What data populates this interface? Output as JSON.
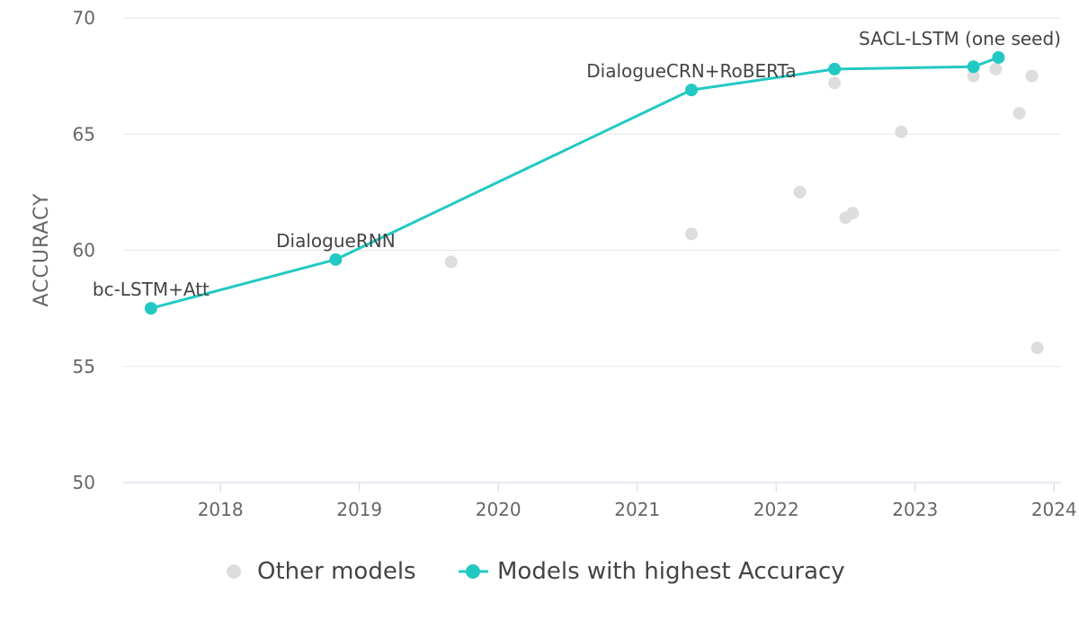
{
  "chart_data": {
    "type": "scatter",
    "title": "",
    "xlabel": "",
    "ylabel": "ACCURACY",
    "xlim": [
      2017.3,
      2024.05
    ],
    "ylim": [
      50,
      70
    ],
    "x_ticks": [
      2018,
      2019,
      2020,
      2021,
      2022,
      2023,
      2024
    ],
    "y_ticks": [
      50,
      55,
      60,
      65,
      70
    ],
    "grid": "horizontal",
    "legend_position": "bottom-center",
    "colors": {
      "best": "#22c9c2",
      "other": "#dddddd"
    },
    "series": [
      {
        "name": "Other models",
        "points": [
          {
            "x": 2019.66,
            "y": 59.5
          },
          {
            "x": 2021.39,
            "y": 60.7
          },
          {
            "x": 2022.17,
            "y": 62.5
          },
          {
            "x": 2022.42,
            "y": 67.2
          },
          {
            "x": 2022.5,
            "y": 61.4
          },
          {
            "x": 2022.55,
            "y": 61.6
          },
          {
            "x": 2022.9,
            "y": 65.1
          },
          {
            "x": 2023.42,
            "y": 67.5
          },
          {
            "x": 2023.58,
            "y": 67.8
          },
          {
            "x": 2023.75,
            "y": 65.9
          },
          {
            "x": 2023.84,
            "y": 67.5
          },
          {
            "x": 2023.88,
            "y": 55.8
          }
        ]
      },
      {
        "name": "Models with highest Accuracy",
        "points": [
          {
            "x": 2017.5,
            "y": 57.5,
            "label": "bc-LSTM+Att"
          },
          {
            "x": 2018.83,
            "y": 59.6,
            "label": "DialogueRNN"
          },
          {
            "x": 2021.39,
            "y": 66.9,
            "label": "DialogueCRN+RoBERTa"
          },
          {
            "x": 2022.42,
            "y": 67.8,
            "label": ""
          },
          {
            "x": 2023.42,
            "y": 67.9,
            "label": ""
          },
          {
            "x": 2023.6,
            "y": 68.3,
            "label": "SACL-LSTM (one seed)"
          }
        ]
      }
    ]
  }
}
